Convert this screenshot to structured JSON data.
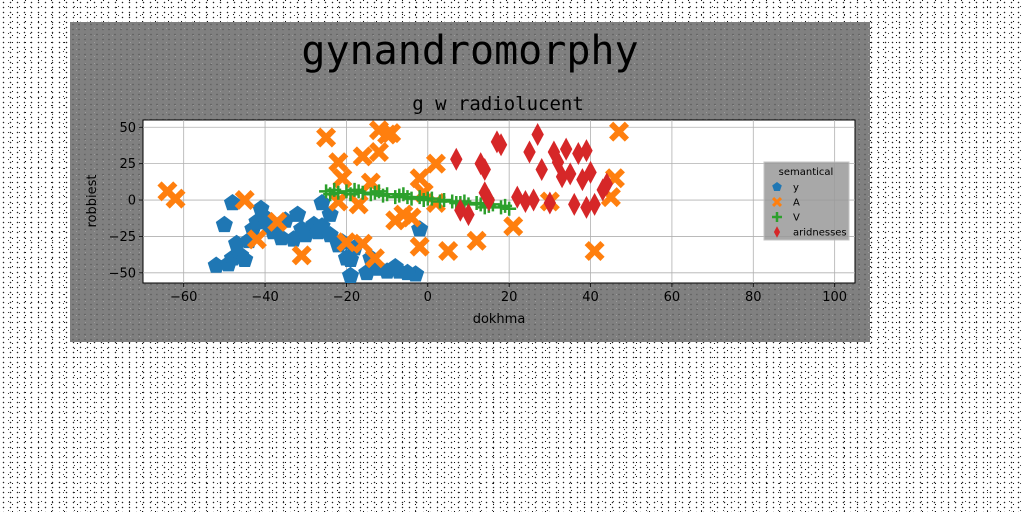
{
  "chart_data": {
    "type": "scatter",
    "suptitle": "gynandromorphy",
    "title": "g w radiolucent",
    "xlabel": "dokhma",
    "ylabel": "robbiest",
    "xlim": [
      -70,
      105
    ],
    "ylim": [
      -57,
      55
    ],
    "xticks": [
      -60,
      -40,
      -20,
      0,
      20,
      40,
      60,
      80,
      100
    ],
    "yticks": [
      -50,
      -25,
      0,
      25,
      50
    ],
    "grid": true,
    "legend": {
      "title": "semantical",
      "placement": "right"
    },
    "series": [
      {
        "name": "y",
        "marker": "pentagon",
        "color": "#1f77b4",
        "points": [
          [
            -52,
            -45
          ],
          [
            -49,
            -44
          ],
          [
            -48,
            -40
          ],
          [
            -46,
            -38
          ],
          [
            -45,
            -41
          ],
          [
            -47,
            -30
          ],
          [
            -44,
            -28
          ],
          [
            -50,
            -17
          ],
          [
            -43,
            -20
          ],
          [
            -42,
            -15
          ],
          [
            -40,
            -12
          ],
          [
            -39,
            -18
          ],
          [
            -38,
            -22
          ],
          [
            -36,
            -26
          ],
          [
            -35,
            -14
          ],
          [
            -33,
            -27
          ],
          [
            -31,
            -20
          ],
          [
            -30,
            -24
          ],
          [
            -28,
            -17
          ],
          [
            -27,
            -22
          ],
          [
            -26,
            -18
          ],
          [
            -24,
            -24
          ],
          [
            -22,
            -31
          ],
          [
            -21,
            -29
          ],
          [
            -24,
            -10
          ],
          [
            -26,
            -2
          ],
          [
            -19,
            -41
          ],
          [
            -19,
            -52
          ],
          [
            -15,
            -50
          ],
          [
            -12,
            -47
          ],
          [
            -10,
            -49
          ],
          [
            -7,
            -49
          ],
          [
            -3,
            -51
          ],
          [
            -8,
            -46
          ],
          [
            -5,
            -50
          ],
          [
            -20,
            -40
          ],
          [
            -18,
            -33
          ],
          [
            -2,
            -20
          ],
          [
            -14,
            -40
          ],
          [
            -48,
            -2
          ],
          [
            -41,
            -6
          ],
          [
            -32,
            -10
          ]
        ]
      },
      {
        "name": "A",
        "marker": "x",
        "color": "#ff7f0e",
        "points": [
          [
            -64,
            6
          ],
          [
            -62,
            1
          ],
          [
            -45,
            0
          ],
          [
            -42,
            -27
          ],
          [
            -37,
            -15
          ],
          [
            -31,
            -38
          ],
          [
            -25,
            43
          ],
          [
            -22,
            26
          ],
          [
            -21,
            15
          ],
          [
            -22,
            -1
          ],
          [
            -20,
            -29
          ],
          [
            -16,
            -30
          ],
          [
            -16,
            30
          ],
          [
            -14,
            12
          ],
          [
            -12,
            48
          ],
          [
            -12,
            33
          ],
          [
            -10,
            45
          ],
          [
            -9,
            46
          ],
          [
            -8,
            -14
          ],
          [
            -6,
            -10
          ],
          [
            -4,
            -12
          ],
          [
            -2,
            -32
          ],
          [
            -2,
            15
          ],
          [
            2,
            25
          ],
          [
            5,
            -35
          ],
          [
            12,
            -28
          ],
          [
            21,
            -18
          ],
          [
            30,
            -1
          ],
          [
            41,
            -35
          ],
          [
            45,
            2
          ],
          [
            46,
            15
          ],
          [
            47,
            47
          ],
          [
            -17,
            -3
          ],
          [
            -1,
            5
          ],
          [
            -13,
            -40
          ],
          [
            2,
            -2
          ]
        ]
      },
      {
        "name": "V",
        "marker": "plus",
        "color": "#2ca02c",
        "points": [
          [
            -25,
            6
          ],
          [
            -23,
            7
          ],
          [
            -22,
            5
          ],
          [
            -20,
            6
          ],
          [
            -19,
            4
          ],
          [
            -17,
            6
          ],
          [
            -16,
            5
          ],
          [
            -14,
            4
          ],
          [
            -13,
            5
          ],
          [
            -11,
            3
          ],
          [
            -10,
            4
          ],
          [
            -8,
            2
          ],
          [
            -7,
            3
          ],
          [
            -5,
            2
          ],
          [
            -4,
            1
          ],
          [
            -2,
            2
          ],
          [
            -1,
            0
          ],
          [
            1,
            1
          ],
          [
            3,
            -1
          ],
          [
            4,
            0
          ],
          [
            6,
            -1
          ],
          [
            7,
            -2
          ],
          [
            9,
            -1
          ],
          [
            10,
            -3
          ],
          [
            12,
            -2
          ],
          [
            13,
            -3
          ],
          [
            15,
            -4
          ],
          [
            16,
            -3
          ],
          [
            18,
            -5
          ],
          [
            19,
            -4
          ],
          [
            -24,
            4
          ],
          [
            -18,
            7
          ],
          [
            -12,
            6
          ],
          [
            -6,
            4
          ],
          [
            0,
            1
          ],
          [
            8,
            -2
          ],
          [
            14,
            -5
          ],
          [
            20,
            -6
          ]
        ]
      },
      {
        "name": "aridnesses",
        "marker": "diamond",
        "color": "#d62728",
        "points": [
          [
            7,
            28
          ],
          [
            8,
            -7
          ],
          [
            13,
            25
          ],
          [
            14,
            21
          ],
          [
            14,
            5
          ],
          [
            17,
            40
          ],
          [
            18,
            38
          ],
          [
            24,
            -1
          ],
          [
            26,
            0
          ],
          [
            25,
            33
          ],
          [
            27,
            45
          ],
          [
            28,
            21
          ],
          [
            30,
            -2
          ],
          [
            31,
            33
          ],
          [
            33,
            16
          ],
          [
            34,
            35
          ],
          [
            35,
            18
          ],
          [
            36,
            -3
          ],
          [
            37,
            32
          ],
          [
            38,
            14
          ],
          [
            39,
            -5
          ],
          [
            39,
            34
          ],
          [
            40,
            19
          ],
          [
            41,
            -3
          ],
          [
            44,
            11
          ],
          [
            22,
            2
          ],
          [
            15,
            0
          ],
          [
            10,
            -10
          ],
          [
            32,
            26
          ],
          [
            43,
            7
          ]
        ]
      }
    ]
  }
}
